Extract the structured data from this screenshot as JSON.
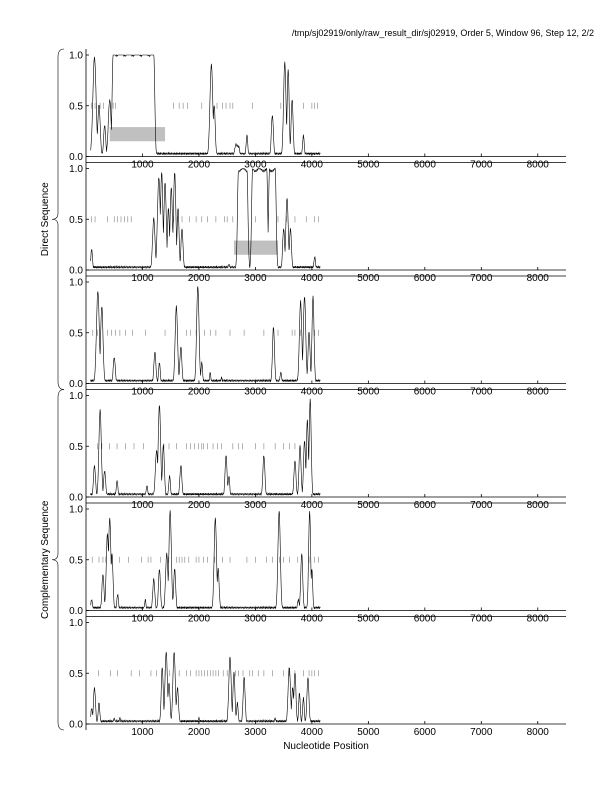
{
  "header": {
    "text": "/tmp/sj02919/only/raw_result_dir/sj02919, Order 5, Window 96, Step 12, 2/2"
  },
  "group_labels": {
    "direct": "Direct Sequence",
    "complementary": "Complementary Sequence"
  },
  "chart_data": {
    "type": "line",
    "xlabel": "Nucleotide Position",
    "xlim": [
      0,
      8500
    ],
    "ylim": [
      0,
      1.0
    ],
    "x_ticks": [
      1000,
      2000,
      3000,
      4000,
      5000,
      6000,
      7000,
      8000
    ],
    "x_tick_labels": [
      "1000",
      "2000",
      "3000",
      "4000",
      "5000",
      "6000",
      "7000",
      "8000"
    ],
    "y_ticks": [
      0,
      0.5,
      1.0
    ],
    "y_tick_labels": [
      "0.0",
      "0.5",
      "1.0"
    ],
    "series_x_range": [
      80,
      4150
    ],
    "panels": [
      {
        "group": "direct",
        "peaks": [
          [
            150,
            0.97,
            40
          ],
          [
            230,
            0.5,
            30
          ],
          [
            330,
            0.3,
            25
          ],
          [
            420,
            0.55,
            35
          ],
          [
            2220,
            0.9,
            35
          ],
          [
            2270,
            0.5,
            25
          ],
          [
            2850,
            0.2,
            20
          ],
          [
            3300,
            0.4,
            25
          ],
          [
            3520,
            0.92,
            30
          ],
          [
            3580,
            0.85,
            25
          ],
          [
            3650,
            0.55,
            25
          ],
          [
            3850,
            0.2,
            20
          ]
        ],
        "plateaus": [
          [
            480,
            1200,
            1.0
          ],
          [
            2650,
            2700,
            0.1
          ]
        ],
        "ticks": [
          100,
          160,
          250,
          310,
          430,
          480,
          520,
          1550,
          1650,
          1720,
          1800,
          2050,
          2320,
          2420,
          2480,
          2550,
          2600,
          2950,
          3450,
          3850,
          4000,
          4050,
          4100
        ],
        "regions": [
          [
            420,
            1400
          ]
        ]
      },
      {
        "group": "direct",
        "peaks": [
          [
            100,
            0.2,
            20
          ],
          [
            1200,
            0.5,
            30
          ],
          [
            1290,
            0.9,
            35
          ],
          [
            1340,
            0.95,
            30
          ],
          [
            1400,
            0.85,
            30
          ],
          [
            1460,
            0.6,
            25
          ],
          [
            1510,
            0.8,
            30
          ],
          [
            1570,
            0.95,
            30
          ],
          [
            1630,
            0.6,
            25
          ],
          [
            1700,
            0.4,
            25
          ],
          [
            2530,
            0.05,
            15
          ],
          [
            3500,
            0.4,
            25
          ],
          [
            3560,
            0.7,
            30
          ],
          [
            3620,
            0.4,
            25
          ],
          [
            4050,
            0.12,
            20
          ]
        ],
        "plateaus": [
          [
            2700,
            2850,
            0.98
          ],
          [
            2950,
            3200,
            0.98
          ],
          [
            3250,
            3350,
            0.98
          ]
        ],
        "ticks": [
          100,
          160,
          380,
          500,
          560,
          620,
          680,
          740,
          800,
          1550,
          1620,
          1700,
          1830,
          1950,
          2050,
          2150,
          2300,
          2450,
          2500,
          2600,
          3000,
          3400,
          3550,
          3700,
          3900,
          4050,
          4120
        ],
        "regions": [
          [
            2620,
            3400
          ]
        ]
      },
      {
        "group": "direct",
        "peaks": [
          [
            210,
            0.9,
            35
          ],
          [
            280,
            0.75,
            30
          ],
          [
            500,
            0.25,
            25
          ],
          [
            1220,
            0.3,
            25
          ],
          [
            1300,
            0.2,
            20
          ],
          [
            1600,
            0.75,
            30
          ],
          [
            1680,
            0.35,
            25
          ],
          [
            1980,
            0.95,
            30
          ],
          [
            2050,
            0.2,
            20
          ],
          [
            2200,
            0.1,
            15
          ],
          [
            2400,
            0.05,
            15
          ],
          [
            3320,
            0.55,
            25
          ],
          [
            3450,
            0.1,
            20
          ],
          [
            3800,
            0.8,
            30
          ],
          [
            3870,
            0.85,
            30
          ],
          [
            3950,
            0.5,
            25
          ],
          [
            4020,
            0.85,
            25
          ]
        ],
        "plateaus": [],
        "ticks": [
          120,
          200,
          380,
          450,
          520,
          600,
          700,
          820,
          1050,
          1400,
          1580,
          1780,
          1850,
          1950,
          2100,
          2200,
          2300,
          2550,
          2800,
          3150,
          3400,
          3650,
          3700,
          3800,
          4050,
          4120
        ],
        "regions": []
      },
      {
        "group": "complementary",
        "peaks": [
          [
            150,
            0.3,
            25
          ],
          [
            250,
            0.85,
            30
          ],
          [
            330,
            0.25,
            25
          ],
          [
            550,
            0.15,
            20
          ],
          [
            1080,
            0.1,
            20
          ],
          [
            1250,
            0.45,
            30
          ],
          [
            1300,
            0.9,
            30
          ],
          [
            1370,
            0.5,
            25
          ],
          [
            1480,
            0.2,
            20
          ],
          [
            1680,
            0.3,
            25
          ],
          [
            2480,
            0.4,
            25
          ],
          [
            2530,
            0.2,
            20
          ],
          [
            3150,
            0.4,
            25
          ],
          [
            3700,
            0.35,
            25
          ],
          [
            3790,
            0.5,
            25
          ],
          [
            3870,
            0.55,
            25
          ],
          [
            3920,
            0.75,
            25
          ],
          [
            3970,
            0.95,
            25
          ]
        ],
        "plateaus": [],
        "ticks": [
          200,
          280,
          420,
          550,
          700,
          850,
          1020,
          1380,
          1470,
          1600,
          1780,
          1850,
          1920,
          1990,
          2050,
          2080,
          2150,
          2250,
          2330,
          2400,
          2600,
          2700,
          2770,
          3000,
          3150,
          3350,
          3500,
          3600,
          3700
        ],
        "regions": []
      },
      {
        "group": "complementary",
        "peaks": [
          [
            100,
            0.1,
            20
          ],
          [
            300,
            0.35,
            25
          ],
          [
            380,
            0.75,
            30
          ],
          [
            420,
            0.9,
            30
          ],
          [
            460,
            0.55,
            25
          ],
          [
            560,
            0.15,
            20
          ],
          [
            1050,
            0.1,
            15
          ],
          [
            1200,
            0.3,
            25
          ],
          [
            1300,
            0.4,
            25
          ],
          [
            1430,
            0.55,
            30
          ],
          [
            1490,
            0.97,
            30
          ],
          [
            1570,
            0.4,
            25
          ],
          [
            2290,
            0.9,
            30
          ],
          [
            2340,
            0.4,
            25
          ],
          [
            3420,
            0.97,
            30
          ],
          [
            3760,
            0.1,
            20
          ],
          [
            3820,
            0.55,
            25
          ],
          [
            3960,
            0.97,
            25
          ],
          [
            4000,
            0.4,
            20
          ]
        ],
        "plateaus": [],
        "ticks": [
          110,
          230,
          300,
          350,
          450,
          590,
          750,
          980,
          1100,
          1150,
          1320,
          1460,
          1600,
          1650,
          1700,
          1750,
          1820,
          1950,
          2000,
          2080,
          2150,
          2280,
          2420,
          2550,
          2850,
          3000,
          3200,
          3300,
          3430,
          3500,
          3600,
          3750,
          3950,
          4050,
          4120
        ],
        "regions": []
      },
      {
        "group": "complementary",
        "peaks": [
          [
            100,
            0.15,
            20
          ],
          [
            150,
            0.35,
            25
          ],
          [
            230,
            0.2,
            20
          ],
          [
            500,
            0.05,
            15
          ],
          [
            600,
            0.05,
            15
          ],
          [
            1350,
            0.55,
            25
          ],
          [
            1420,
            0.7,
            30
          ],
          [
            1470,
            0.4,
            25
          ],
          [
            1560,
            0.7,
            30
          ],
          [
            1620,
            0.35,
            25
          ],
          [
            2000,
            0.05,
            15
          ],
          [
            2550,
            0.65,
            30
          ],
          [
            2620,
            0.5,
            25
          ],
          [
            2680,
            0.2,
            20
          ],
          [
            2800,
            0.45,
            25
          ],
          [
            3350,
            0.05,
            15
          ],
          [
            3600,
            0.55,
            30
          ],
          [
            3660,
            0.35,
            25
          ],
          [
            3700,
            0.5,
            25
          ],
          [
            3780,
            0.3,
            20
          ],
          [
            3850,
            0.25,
            20
          ],
          [
            3930,
            0.45,
            25
          ]
        ],
        "plateaus": [],
        "ticks": [
          220,
          430,
          560,
          800,
          950,
          1150,
          1250,
          1400,
          1480,
          1650,
          1780,
          1850,
          1950,
          2000,
          2050,
          2100,
          2150,
          2200,
          2250,
          2300,
          2350,
          2430,
          2500,
          2650,
          2700,
          2780,
          2900,
          2950,
          3050,
          3150,
          3300,
          3500,
          3600,
          3700,
          3850,
          3950,
          4000,
          4050,
          4120
        ],
        "regions": []
      }
    ]
  }
}
